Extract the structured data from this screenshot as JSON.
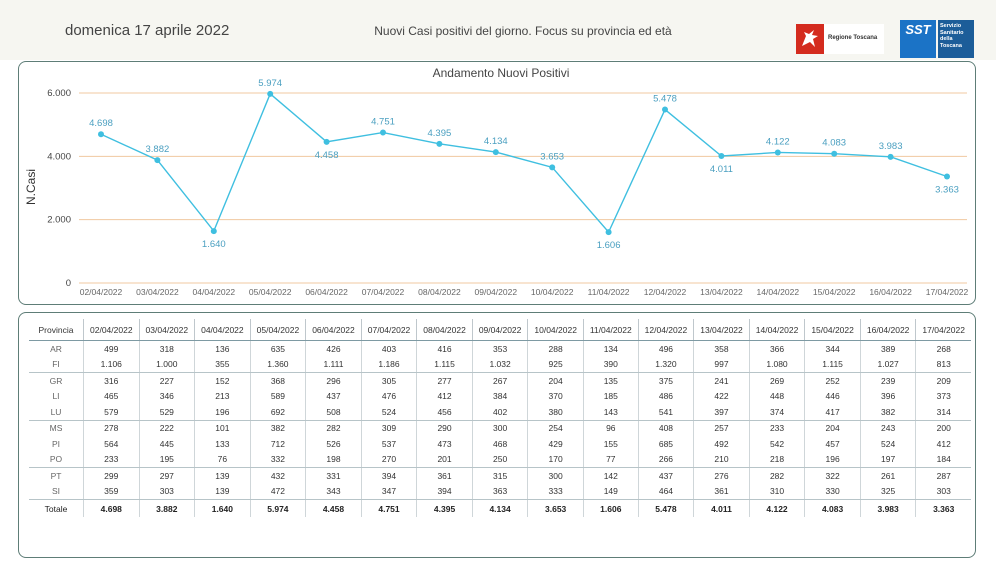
{
  "header": {
    "date": "domenica 17 aprile 2022",
    "title": "Nuovi Casi positivi del giorno. Focus su provincia ed età",
    "logo_regione": "Regione Toscana",
    "logo_sst_mark": "SST",
    "logo_sst_lines": [
      "Servizio",
      "Sanitario",
      "della",
      "Toscana"
    ]
  },
  "chart_data": {
    "type": "line",
    "title": "Andamento Nuovi Positivi",
    "ylabel": "N.Casi",
    "xlabel": "",
    "ylim": [
      0,
      6000
    ],
    "yticks": [
      0,
      2000,
      4000,
      6000
    ],
    "ytick_labels": [
      "0",
      "2.000",
      "4.000",
      "6.000"
    ],
    "grid": "horizontal",
    "line_color": "#3fbfe0",
    "grid_color": "#f0c8a0",
    "x": [
      "02/04/2022",
      "03/04/2022",
      "04/04/2022",
      "05/04/2022",
      "06/04/2022",
      "07/04/2022",
      "08/04/2022",
      "09/04/2022",
      "10/04/2022",
      "11/04/2022",
      "12/04/2022",
      "13/04/2022",
      "14/04/2022",
      "15/04/2022",
      "16/04/2022",
      "17/04/2022"
    ],
    "values": [
      4698,
      3882,
      1640,
      5974,
      4458,
      4751,
      4395,
      4134,
      3653,
      1606,
      5478,
      4011,
      4122,
      4083,
      3983,
      3363
    ],
    "value_labels": [
      "4.698",
      "3.882",
      "1.640",
      "5.974",
      "4.458",
      "4.751",
      "4.395",
      "4.134",
      "3.653",
      "1.606",
      "5.478",
      "4.011",
      "4.122",
      "4.083",
      "3.983",
      "3.363"
    ],
    "label_positions": [
      "above",
      "above",
      "below",
      "above",
      "below",
      "above",
      "above",
      "above",
      "above",
      "below",
      "above",
      "below",
      "above",
      "above",
      "above",
      "below"
    ]
  },
  "table": {
    "corner_label": "Provincia",
    "columns": [
      "02/04/2022",
      "03/04/2022",
      "04/04/2022",
      "05/04/2022",
      "06/04/2022",
      "07/04/2022",
      "08/04/2022",
      "09/04/2022",
      "10/04/2022",
      "11/04/2022",
      "12/04/2022",
      "13/04/2022",
      "14/04/2022",
      "15/04/2022",
      "16/04/2022",
      "17/04/2022"
    ],
    "rows": [
      {
        "name": "AR",
        "values": [
          "499",
          "318",
          "136",
          "635",
          "426",
          "403",
          "416",
          "353",
          "288",
          "134",
          "496",
          "358",
          "366",
          "344",
          "389",
          "268"
        ]
      },
      {
        "name": "FI",
        "values": [
          "1.106",
          "1.000",
          "355",
          "1.360",
          "1.111",
          "1.186",
          "1.115",
          "1.032",
          "925",
          "390",
          "1.320",
          "997",
          "1.080",
          "1.115",
          "1.027",
          "813"
        ]
      },
      {
        "name": "GR",
        "values": [
          "316",
          "227",
          "152",
          "368",
          "296",
          "305",
          "277",
          "267",
          "204",
          "135",
          "375",
          "241",
          "269",
          "252",
          "239",
          "209"
        ]
      },
      {
        "name": "LI",
        "values": [
          "465",
          "346",
          "213",
          "589",
          "437",
          "476",
          "412",
          "384",
          "370",
          "185",
          "486",
          "422",
          "448",
          "446",
          "396",
          "373"
        ]
      },
      {
        "name": "LU",
        "values": [
          "579",
          "529",
          "196",
          "692",
          "508",
          "524",
          "456",
          "402",
          "380",
          "143",
          "541",
          "397",
          "374",
          "417",
          "382",
          "314"
        ]
      },
      {
        "name": "MS",
        "values": [
          "278",
          "222",
          "101",
          "382",
          "282",
          "309",
          "290",
          "300",
          "254",
          "96",
          "408",
          "257",
          "233",
          "204",
          "243",
          "200"
        ]
      },
      {
        "name": "PI",
        "values": [
          "564",
          "445",
          "133",
          "712",
          "526",
          "537",
          "473",
          "468",
          "429",
          "155",
          "685",
          "492",
          "542",
          "457",
          "524",
          "412"
        ]
      },
      {
        "name": "PO",
        "values": [
          "233",
          "195",
          "76",
          "332",
          "198",
          "270",
          "201",
          "250",
          "170",
          "77",
          "266",
          "210",
          "218",
          "196",
          "197",
          "184"
        ]
      },
      {
        "name": "PT",
        "values": [
          "299",
          "297",
          "139",
          "432",
          "331",
          "394",
          "361",
          "315",
          "300",
          "142",
          "437",
          "276",
          "282",
          "322",
          "261",
          "287"
        ]
      },
      {
        "name": "SI",
        "values": [
          "359",
          "303",
          "139",
          "472",
          "343",
          "347",
          "394",
          "363",
          "333",
          "149",
          "464",
          "361",
          "310",
          "330",
          "325",
          "303"
        ]
      }
    ],
    "total": {
      "name": "Totale",
      "values": [
        "4.698",
        "3.882",
        "1.640",
        "5.974",
        "4.458",
        "4.751",
        "4.395",
        "4.134",
        "3.653",
        "1.606",
        "5.478",
        "4.011",
        "4.122",
        "4.083",
        "3.983",
        "3.363"
      ]
    }
  }
}
